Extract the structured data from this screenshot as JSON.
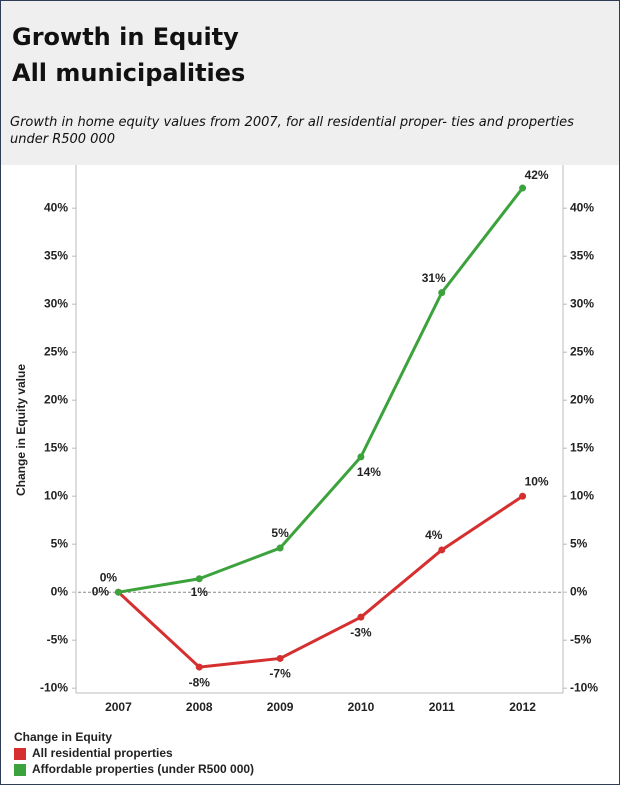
{
  "chart_data": {
    "type": "line",
    "title": "Growth in Equity",
    "subtitle_line1": "All municipalities",
    "description": "Growth in home equity values from 2007, for all residential proper- ties and properties under R500 000",
    "y_axis_label": "Change in Equity value",
    "legend_title": "Change in Equity",
    "categories": [
      "2007",
      "2008",
      "2009",
      "2010",
      "2011",
      "2012"
    ],
    "series": [
      {
        "name": "All residential properties",
        "color": "#d62f2f",
        "values": [
          0,
          -7.8,
          -6.9,
          -2.6,
          4.4,
          10
        ],
        "value_labels": [
          "0%",
          "-8%",
          "-7%",
          "-3%",
          "4%",
          "10%"
        ]
      },
      {
        "name": "Affordable properties (under R500 000)",
        "color": "#3ca33c",
        "values": [
          0,
          1.4,
          4.6,
          14.1,
          31.2,
          42.1
        ],
        "value_labels": [
          "0%",
          "1%",
          "5%",
          "14%",
          "31%",
          "42%"
        ]
      }
    ],
    "ylim": [
      -10.5,
      44.5
    ],
    "yticks": [
      {
        "value": -10,
        "label": "-10%"
      },
      {
        "value": -5,
        "label": "-5%"
      },
      {
        "value": 0,
        "label": "0%"
      },
      {
        "value": 5,
        "label": "5%"
      },
      {
        "value": 10,
        "label": "10%"
      },
      {
        "value": 15,
        "label": "15%"
      },
      {
        "value": 20,
        "label": "20%"
      },
      {
        "value": 25,
        "label": "25%"
      },
      {
        "value": 30,
        "label": "30%"
      },
      {
        "value": 35,
        "label": "35%"
      },
      {
        "value": 40,
        "label": "40%"
      }
    ],
    "y2lim": [
      -10.5,
      44.5
    ],
    "y2ticks": [
      {
        "value": -10,
        "label": "-10%"
      },
      {
        "value": -5,
        "label": "-5%"
      },
      {
        "value": 0,
        "label": "0%"
      },
      {
        "value": 5,
        "label": "5%"
      },
      {
        "value": 10,
        "label": "10%"
      },
      {
        "value": 15,
        "label": "15%"
      },
      {
        "value": 20,
        "label": "20%"
      },
      {
        "value": 25,
        "label": "25%"
      },
      {
        "value": 30,
        "label": "30%"
      },
      {
        "value": 35,
        "label": "35%"
      },
      {
        "value": 40,
        "label": "40%"
      }
    ],
    "zero_line": true
  }
}
